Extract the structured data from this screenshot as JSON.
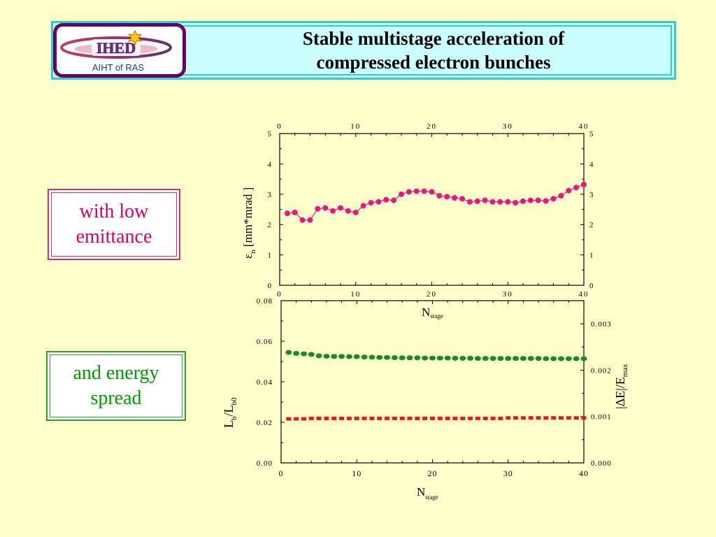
{
  "header": {
    "title_line1": "Stable multistage acceleration of",
    "title_line2": "compressed electron bunches",
    "logo_text": "IHED",
    "logo_subtext": "AIHT of RAS"
  },
  "notes": {
    "emittance_line1": "with low",
    "emittance_line2": "emittance",
    "energy_line1": "and energy",
    "energy_line2": "spread"
  },
  "colors": {
    "background": "#FFFFCC",
    "header_bg": "#CCFFFF",
    "header_border": "#33CCCC",
    "logo_border": "#660066",
    "emittance_series": "#E6197A",
    "bunch_length_series": "#1F8A1F",
    "energy_spread_series": "#E61919"
  },
  "chart_data": [
    {
      "type": "line",
      "xlabel_main": "N",
      "xlabel_sub": "stage",
      "ylabel_main": "ε",
      "ylabel_sub": "n",
      "ylabel_rest": " [mm*mrad ]",
      "xlim": [
        0,
        40
      ],
      "ylim": [
        0,
        5
      ],
      "x_ticks": [
        0,
        10,
        20,
        30,
        40
      ],
      "y_ticks": [
        0,
        1,
        2,
        3,
        4,
        5
      ],
      "x": [
        1,
        2,
        3,
        4,
        5,
        6,
        7,
        8,
        9,
        10,
        11,
        12,
        13,
        14,
        15,
        16,
        17,
        18,
        19,
        20,
        21,
        22,
        23,
        24,
        25,
        26,
        27,
        28,
        29,
        30,
        31,
        32,
        33,
        34,
        35,
        36,
        37,
        38,
        39,
        40
      ],
      "series": [
        {
          "values": [
            2.37,
            2.4,
            2.15,
            2.15,
            2.52,
            2.55,
            2.45,
            2.55,
            2.45,
            2.4,
            2.62,
            2.72,
            2.75,
            2.82,
            2.8,
            3.0,
            3.08,
            3.1,
            3.1,
            3.08,
            2.95,
            2.92,
            2.88,
            2.85,
            2.75,
            2.77,
            2.8,
            2.75,
            2.75,
            2.75,
            2.72,
            2.77,
            2.8,
            2.8,
            2.78,
            2.85,
            2.95,
            3.12,
            3.22,
            3.32
          ],
          "color": "#E6197A"
        }
      ]
    },
    {
      "type": "scatter",
      "xlabel_main": "N",
      "xlabel_sub": "stage",
      "ylabel_left_main": "L",
      "ylabel_left_sub1": "b",
      "ylabel_left_mid": "/L",
      "ylabel_left_sub2": "b0",
      "ylabel_right_main": "|ΔE|/E",
      "ylabel_right_sub": "max",
      "xlim": [
        0,
        40
      ],
      "ylim_left": [
        0,
        0.08
      ],
      "ylim_right": [
        0,
        0.0035
      ],
      "x_ticks": [
        0,
        10,
        20,
        30,
        40
      ],
      "y_ticks_left": [
        "0.00",
        "0.02",
        "0.04",
        "0.06",
        "0.08"
      ],
      "y_ticks_right": [
        "0.000",
        "0.001",
        "0.002",
        "0.003"
      ],
      "x": [
        1,
        2,
        3,
        4,
        5,
        6,
        7,
        8,
        9,
        10,
        11,
        12,
        13,
        14,
        15,
        16,
        17,
        18,
        19,
        20,
        21,
        22,
        23,
        24,
        25,
        26,
        27,
        28,
        29,
        30,
        31,
        32,
        33,
        34,
        35,
        36,
        37,
        38,
        39,
        40
      ],
      "series": [
        {
          "axis": "left",
          "color": "#1F8A1F",
          "values": [
            0.0545,
            0.054,
            0.0538,
            0.0535,
            0.0528,
            0.0526,
            0.0525,
            0.0525,
            0.0524,
            0.0524,
            0.0522,
            0.0521,
            0.052,
            0.052,
            0.0519,
            0.0518,
            0.0518,
            0.0518,
            0.0517,
            0.0517,
            0.0517,
            0.0517,
            0.0516,
            0.0516,
            0.0516,
            0.0515,
            0.0515,
            0.0515,
            0.0515,
            0.0515,
            0.0515,
            0.0515,
            0.0515,
            0.0515,
            0.0514,
            0.0514,
            0.0514,
            0.0514,
            0.0514,
            0.0514
          ]
        },
        {
          "axis": "right",
          "color": "#E61919",
          "values": [
            0.00095,
            0.00095,
            0.00095,
            0.00096,
            0.00096,
            0.00096,
            0.00096,
            0.00096,
            0.00096,
            0.00096,
            0.00096,
            0.00096,
            0.00096,
            0.00096,
            0.00096,
            0.00096,
            0.00096,
            0.00096,
            0.00096,
            0.00096,
            0.00096,
            0.00096,
            0.00096,
            0.00096,
            0.00096,
            0.00096,
            0.00096,
            0.00096,
            0.00096,
            0.00097,
            0.00097,
            0.00097,
            0.00097,
            0.00097,
            0.00097,
            0.00097,
            0.00097,
            0.00097,
            0.00097,
            0.00097
          ]
        }
      ]
    }
  ]
}
